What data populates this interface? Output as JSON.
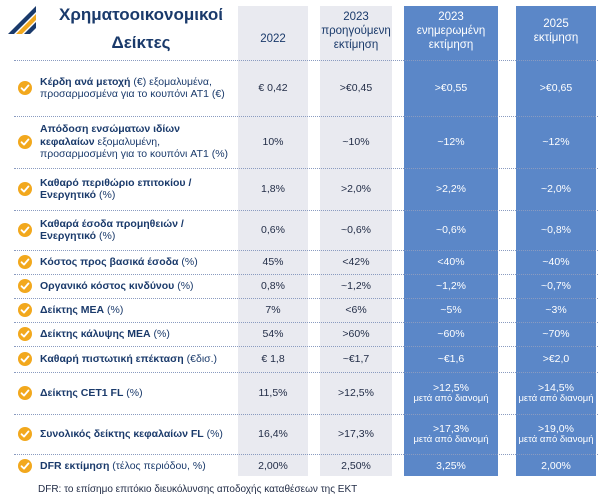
{
  "title_line1": "Χρηματοοικονομικοί",
  "title_line2": "Δείκτες",
  "columns": [
    {
      "lines": [
        "2022"
      ]
    },
    {
      "lines": [
        "2023",
        "προηγούμενη",
        "εκτίμηση"
      ]
    },
    {
      "lines": [
        "2023",
        "ενημερωμένη",
        "εκτίμηση"
      ]
    },
    {
      "lines": [
        "2025",
        "εκτίμηση"
      ]
    }
  ],
  "rows": [
    {
      "bold": "Κέρδη ανά μετοχή",
      "rest": " (€) εξομαλυμένα, προσαρμοσμένα για το κουπόνι AT1 (€)",
      "values": [
        "€ 0,42",
        ">€0,45",
        ">€0,55",
        ">€0,65"
      ]
    },
    {
      "bold": "Απόδοση ενσώματων ιδίων κεφαλαίων",
      "rest": " εξομαλυμένη, προσαρμοσμένη για το κουπόνι AT1 (%)",
      "values": [
        "10%",
        "~10%",
        "~12%",
        "~12%"
      ]
    },
    {
      "bold": "Καθαρό περιθώριο επιτοκίου / Ενεργητικό",
      "rest": " (%)",
      "values": [
        "1,8%",
        ">2,0%",
        ">2,2%",
        "~2,0%"
      ]
    },
    {
      "bold": "Καθαρά έσοδα προμηθειών / Ενεργητικό",
      "rest": " (%)",
      "values": [
        "0,6%",
        "~0,6%",
        "~0,6%",
        "~0,8%"
      ]
    },
    {
      "bold": "Κόστος προς βασικά έσοδα",
      "rest": " (%)",
      "values": [
        "45%",
        "<42%",
        "<40%",
        "~40%"
      ]
    },
    {
      "bold": "Οργανικό κόστος κινδύνου",
      "rest": " (%)",
      "values": [
        "0,8%",
        "~1,2%",
        "~1,2%",
        "~0,7%"
      ]
    },
    {
      "bold": "Δείκτης ΜΕΑ",
      "rest": " (%)",
      "values": [
        "7%",
        "<6%",
        "~5%",
        "~3%"
      ]
    },
    {
      "bold": "Δείκτης κάλυψης ΜΕΑ",
      "rest": " (%)",
      "values": [
        "54%",
        ">60%",
        "~60%",
        "~70%"
      ]
    },
    {
      "bold": "Καθαρή πιστωτική επέκταση",
      "rest": " (€δισ.)",
      "values": [
        "€ 1,8",
        "~€1,7",
        "~€1,6",
        ">€2,0"
      ]
    },
    {
      "bold": "Δείκτης CET1 FL",
      "rest": " (%)",
      "values": [
        "11,5%",
        ">12,5%",
        ">12,5%",
        ">14,5%"
      ],
      "notes": [
        "",
        "",
        "μετά από διανομή",
        "μετά από διανομή"
      ]
    },
    {
      "bold": "Συνολικός δείκτης κεφαλαίων FL",
      "rest": " (%)",
      "values": [
        "16,4%",
        ">17,3%",
        ">17,3%",
        ">19,0%"
      ],
      "notes": [
        "",
        "",
        "μετά από διανομή",
        "μετά από διανομή"
      ]
    },
    {
      "bold": "DFR εκτίμηση",
      "rest": " (τέλος περιόδου, %)",
      "values": [
        "2,00%",
        "2,50%",
        "3,25%",
        "2,00%"
      ]
    }
  ],
  "footnote": "DFR: το επίσημο επιτόκιο διευκόλυνσης αποδοχής καταθέσεων της ΕΚΤ",
  "colors": {
    "bullet": "#f2a81d",
    "blue_col": "#5b87c8",
    "light_col": "#e9eaf0",
    "title": "#1a3a6b"
  }
}
